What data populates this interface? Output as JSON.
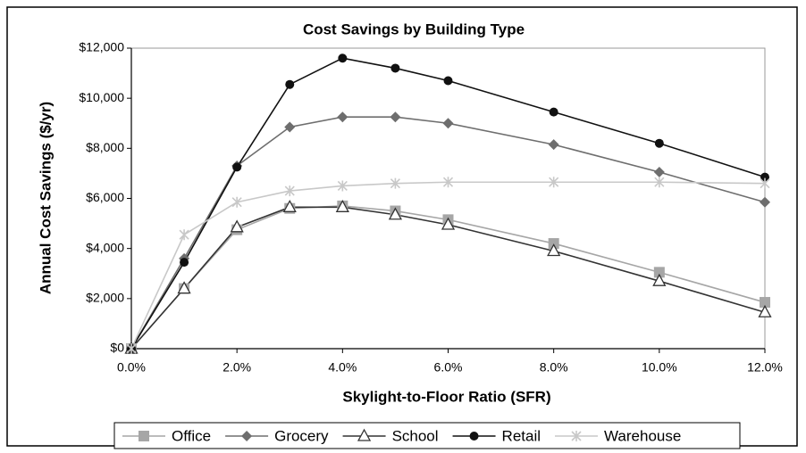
{
  "chart_data": {
    "type": "line",
    "title": "Cost Savings by Building Type",
    "x_label": "Skylight-to-Floor Ratio (SFR)",
    "y_label": "Annual Cost Savings ($/yr)",
    "x": [
      0,
      1,
      2,
      3,
      4,
      5,
      6,
      8,
      10,
      12
    ],
    "xlim": [
      0,
      12
    ],
    "xticks": [
      {
        "value": 0,
        "label": "0.0%"
      },
      {
        "value": 2,
        "label": "2.0%"
      },
      {
        "value": 4,
        "label": "4.0%"
      },
      {
        "value": 6,
        "label": "6.0%"
      },
      {
        "value": 8,
        "label": "8.0%"
      },
      {
        "value": 10,
        "label": "10.0%"
      },
      {
        "value": 12,
        "label": "12.0%"
      }
    ],
    "ylim": [
      0,
      12000
    ],
    "yticks": [
      {
        "value": 0,
        "label": "$0"
      },
      {
        "value": 2000,
        "label": "$2,000"
      },
      {
        "value": 4000,
        "label": "$4,000"
      },
      {
        "value": 6000,
        "label": "$6,000"
      },
      {
        "value": 8000,
        "label": "$8,000"
      },
      {
        "value": 10000,
        "label": "$10,000"
      },
      {
        "value": 12000,
        "label": "$12,000"
      }
    ],
    "grid": false,
    "legend": "bottom",
    "series": [
      {
        "name": "Office",
        "color": "#a6a6a6",
        "marker": "square",
        "values": [
          0,
          2400,
          4750,
          5600,
          5700,
          5500,
          5150,
          4200,
          3050,
          1850
        ]
      },
      {
        "name": "Grocery",
        "color": "#6e6e6e",
        "marker": "diamond",
        "values": [
          0,
          3600,
          7300,
          8850,
          9250,
          9250,
          9000,
          8150,
          7050,
          5850
        ]
      },
      {
        "name": "School",
        "color": "#333333",
        "marker": "triangle",
        "values": [
          0,
          2400,
          4850,
          5650,
          5650,
          5350,
          4950,
          3900,
          2700,
          1450
        ]
      },
      {
        "name": "Retail",
        "color": "#111111",
        "marker": "circle",
        "values": [
          0,
          3450,
          7250,
          10550,
          11600,
          11200,
          10700,
          9450,
          8200,
          6850
        ]
      },
      {
        "name": "Warehouse",
        "color": "#c8c8c8",
        "marker": "star",
        "values": [
          0,
          4550,
          5850,
          6300,
          6500,
          6600,
          6650,
          6650,
          6650,
          6600
        ]
      }
    ]
  }
}
